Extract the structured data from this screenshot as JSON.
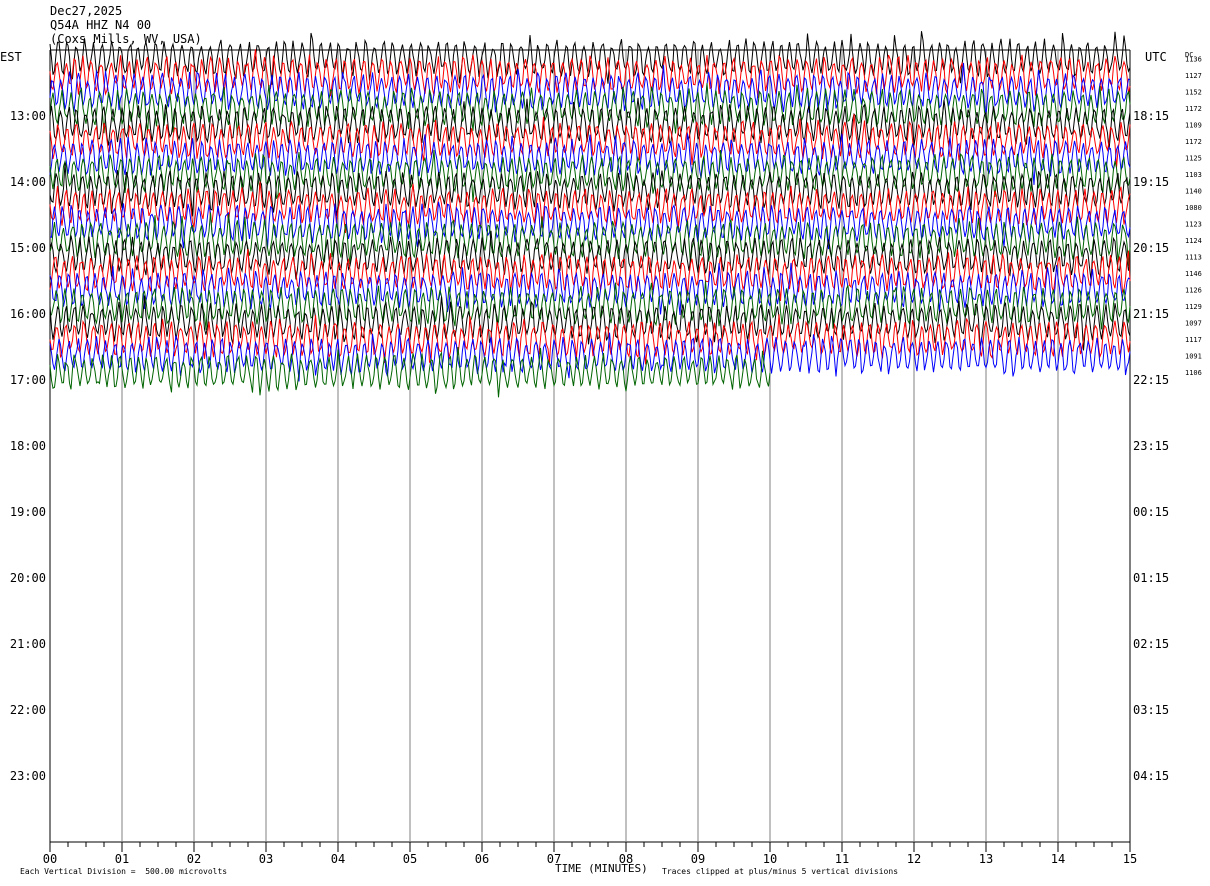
{
  "header": {
    "date": "Dec27,2025",
    "station": "Q54A HHZ N4 00",
    "location": "(Coxs Mills, WV, USA)"
  },
  "left_axis_label": "EST",
  "right_axis_label": "UTC",
  "dc_label": "DC",
  "footer": {
    "scale_note": "Each Vertical Division =  500.00 microvolts",
    "x_axis_title": "TIME (MINUTES)",
    "clip_note": "Traces clipped at plus/minus 5 vertical divisions"
  },
  "colors": {
    "trace_cycle": [
      "#000000",
      "#ff0000",
      "#0000ff",
      "#006400"
    ],
    "grid": "#808080"
  },
  "chart_data": {
    "type": "helicorder",
    "x_range_minutes": [
      0,
      15
    ],
    "x_ticks": [
      "00",
      "01",
      "02",
      "03",
      "04",
      "05",
      "06",
      "07",
      "08",
      "09",
      "10",
      "11",
      "12",
      "13",
      "14",
      "15"
    ],
    "rows_total": 48,
    "minutes_per_row": 15,
    "left_time_labels": [
      "13:00",
      "14:00",
      "15:00",
      "16:00",
      "17:00",
      "18:00",
      "19:00",
      "20:00",
      "21:00",
      "22:00",
      "23:00"
    ],
    "right_time_labels": [
      "18:15",
      "19:15",
      "20:15",
      "21:15",
      "22:15",
      "23:15",
      "00:15",
      "01:15",
      "02:15",
      "03:15",
      "04:15"
    ],
    "dc_offsets": [
      1136,
      1127,
      1152,
      1172,
      1109,
      1172,
      1125,
      1103,
      1140,
      1080,
      1123,
      1124,
      1113,
      1146,
      1126,
      1129,
      1097,
      1117,
      1091,
      1106
    ],
    "last_row_end_minute": 10
  }
}
